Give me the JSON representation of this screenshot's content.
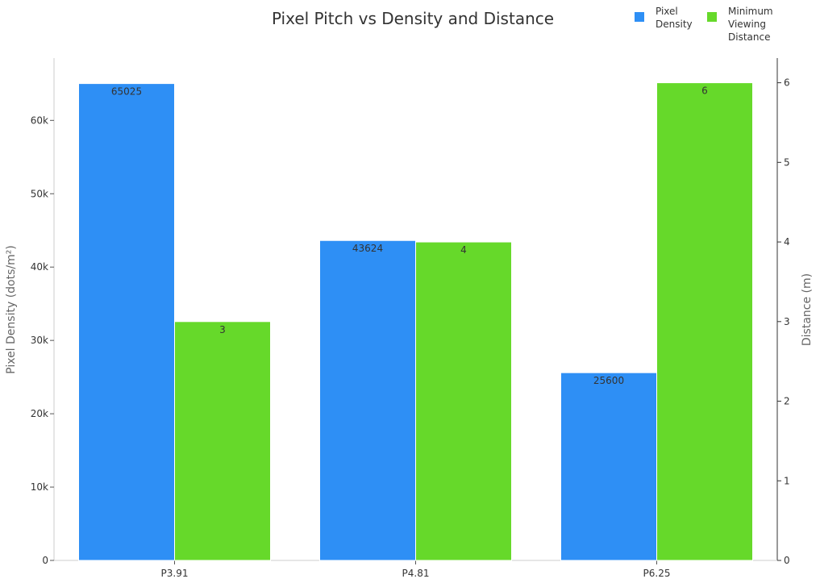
{
  "chart_data": {
    "type": "bar",
    "title": "Pixel Pitch vs Density and Distance",
    "categories": [
      "P3.91",
      "P4.81",
      "P6.25"
    ],
    "series": [
      {
        "name": "Pixel Density",
        "axis": "left",
        "color": "#2e8ff5",
        "values": [
          65025,
          43624,
          25600
        ],
        "labels": [
          "65025",
          "43624",
          "25600"
        ]
      },
      {
        "name": "Minimum Viewing Distance",
        "axis": "right",
        "color": "#66d92a",
        "values": [
          3,
          4,
          6
        ],
        "labels": [
          "3",
          "4",
          "6"
        ]
      }
    ],
    "ylabel_left": "Pixel Density (dots/m²)",
    "ylabel_right": "Distance (m)",
    "ylim_left": [
      0,
      68500
    ],
    "ylim_right": [
      0,
      6.31
    ],
    "yticks_left": [
      {
        "v": 0,
        "label": "0"
      },
      {
        "v": 10000,
        "label": "10k"
      },
      {
        "v": 20000,
        "label": "20k"
      },
      {
        "v": 30000,
        "label": "30k"
      },
      {
        "v": 40000,
        "label": "40k"
      },
      {
        "v": 50000,
        "label": "50k"
      },
      {
        "v": 60000,
        "label": "60k"
      }
    ],
    "yticks_right": [
      {
        "v": 0,
        "label": "0"
      },
      {
        "v": 1,
        "label": "1"
      },
      {
        "v": 2,
        "label": "2"
      },
      {
        "v": 3,
        "label": "3"
      },
      {
        "v": 4,
        "label": "4"
      },
      {
        "v": 5,
        "label": "5"
      },
      {
        "v": 6,
        "label": "6"
      }
    ],
    "legend": {
      "placement": "top-right",
      "entries": [
        [
          "Pixel",
          "Density"
        ],
        [
          "Minimum",
          "Viewing",
          "Distance"
        ]
      ]
    },
    "grid": false
  }
}
